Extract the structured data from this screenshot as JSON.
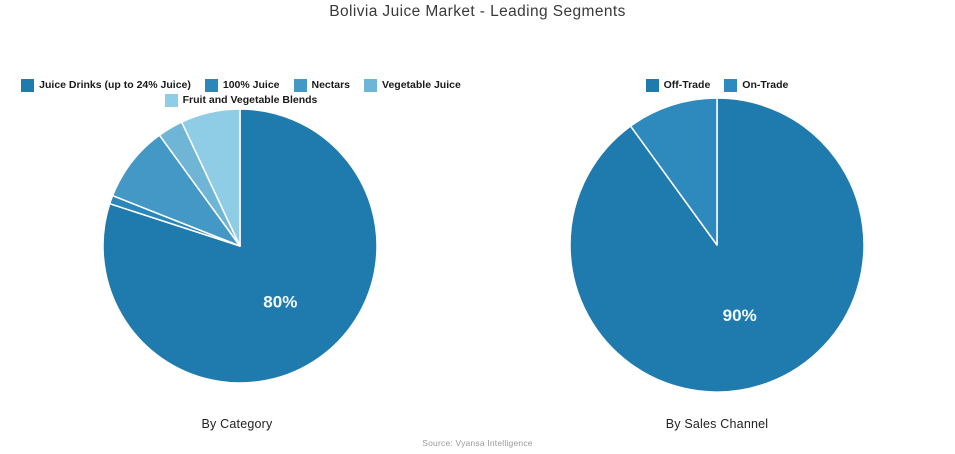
{
  "page": {
    "title": "Bolivia Juice Market - Leading Segments",
    "source": "Source: Vyansa Intelligence",
    "background_color": "#ffffff",
    "slice_divider_color": "#ffffff",
    "slice_label_color": "#f4f9fc"
  },
  "chart_data": [
    {
      "type": "pie",
      "caption": "By Category",
      "labels": [
        "Juice Drinks (up to 24% Juice)",
        "100% Juice",
        "Nectars",
        "Vegetable Juice",
        "Fruit and Vegetable Blends"
      ],
      "values": [
        80,
        1,
        9,
        3,
        7
      ],
      "slice_labels": [
        "80%",
        "",
        "",
        "",
        ""
      ],
      "colors": [
        "#1f7aae",
        "#2b87b9",
        "#4398c5",
        "#6fb5d5",
        "#8ecde5"
      ],
      "start_angle_deg": 0,
      "direction": "clockwise",
      "legend_position": "top",
      "legend_rows": [
        [
          0,
          1,
          2,
          3
        ],
        [
          4
        ]
      ]
    },
    {
      "type": "pie",
      "caption": "By Sales Channel",
      "labels": [
        "Off-Trade",
        "On-Trade"
      ],
      "values": [
        90,
        10
      ],
      "slice_labels": [
        "90%",
        ""
      ],
      "colors": [
        "#1f7aae",
        "#2e8abd"
      ],
      "start_angle_deg": 0,
      "direction": "clockwise",
      "legend_position": "top",
      "legend_rows": [
        [
          0,
          1
        ]
      ]
    }
  ]
}
